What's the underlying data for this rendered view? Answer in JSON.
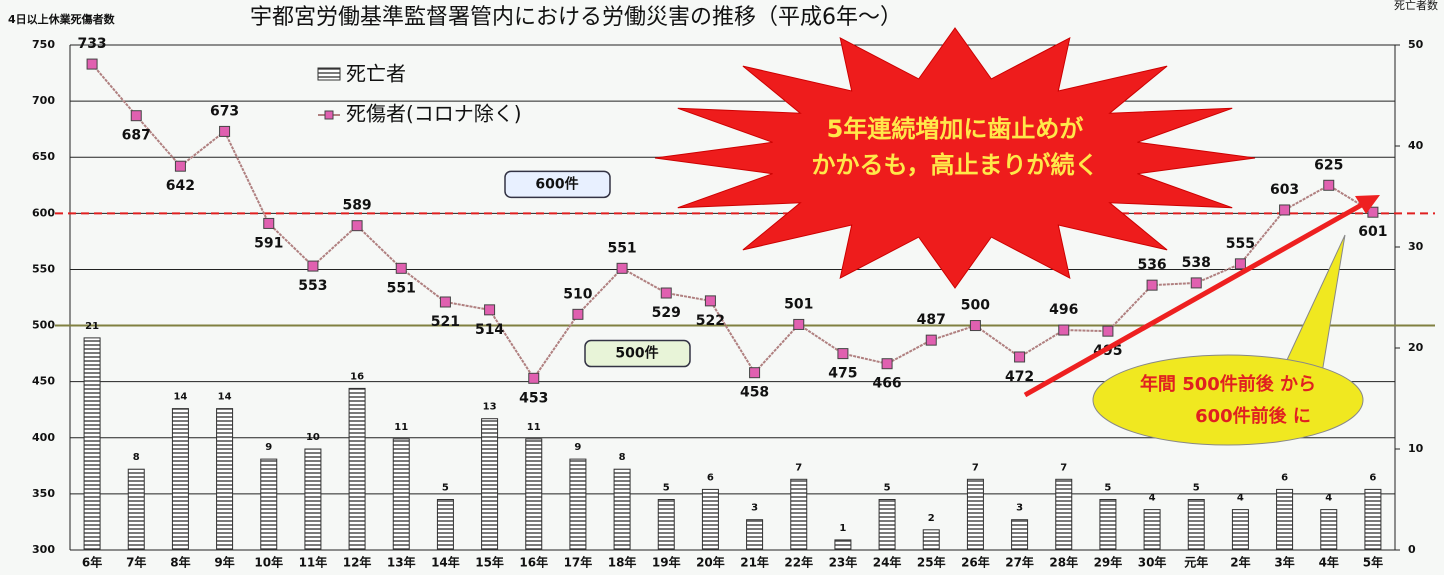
{
  "chart_data": {
    "type": "bar_line",
    "title": "宇都宮労働基準監督署管内における労働災害の推移（平成6年～）",
    "y_axis_label": "4日以上休業死傷者数",
    "y2_axis_label": "死亡者数",
    "categories": [
      "6年",
      "7年",
      "8年",
      "9年",
      "10年",
      "11年",
      "12年",
      "13年",
      "14年",
      "15年",
      "16年",
      "17年",
      "18年",
      "19年",
      "20年",
      "21年",
      "22年",
      "23年",
      "24年",
      "25年",
      "26年",
      "27年",
      "28年",
      "29年",
      "30年",
      "元年",
      "2年",
      "3年",
      "4年",
      "5年"
    ],
    "series": [
      {
        "name": "死亡者",
        "type": "bar",
        "axis": "y2",
        "color": "#333333",
        "values": [
          21,
          8,
          14,
          14,
          9,
          10,
          16,
          11,
          5,
          13,
          11,
          9,
          8,
          5,
          6,
          3,
          7,
          1,
          5,
          2,
          7,
          3,
          7,
          5,
          4,
          5,
          4,
          6,
          4,
          6
        ]
      },
      {
        "name": "死傷者(コロナ除く)",
        "type": "line",
        "color": "#b08080",
        "marker_color": "#e060b0",
        "values": [
          733,
          687,
          642,
          673,
          591,
          553,
          589,
          551,
          521,
          514,
          453,
          510,
          551,
          529,
          522,
          458,
          501,
          475,
          466,
          487,
          500,
          472,
          496,
          495,
          536,
          538,
          555,
          603,
          625,
          601
        ]
      }
    ],
    "ylim": [
      300,
      750
    ],
    "yticks": [
      300,
      350,
      400,
      450,
      500,
      550,
      600,
      650,
      700,
      750
    ],
    "y2lim": [
      0,
      50
    ],
    "y2ticks": [
      0,
      10,
      20,
      30,
      40,
      50
    ],
    "grid": true,
    "reference_lines": [
      {
        "value": 600,
        "label": "600件",
        "color": "#e02020"
      },
      {
        "value": 500,
        "label": "500件",
        "color": "#808040"
      }
    ],
    "annotations": [
      {
        "lines": [
          "5年連続増加に歯止めが",
          "かかるも，高止まりが続く"
        ]
      },
      {
        "lines": [
          "年間 500件前後 から",
          "600件前後 に"
        ]
      }
    ]
  }
}
